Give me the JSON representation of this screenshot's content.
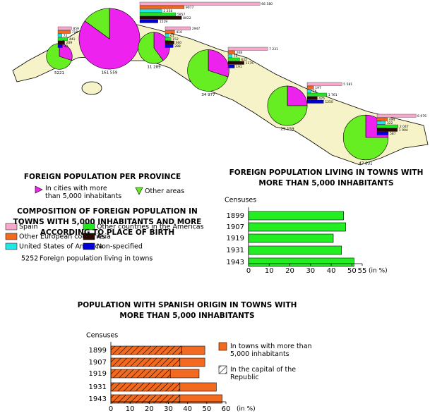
{
  "chart_data": [
    {
      "type": "map",
      "title": "FOREIGN POPULATION PER PROVINCE",
      "pie_legend": [
        {
          "name": "In cities with more than 5,000 inhabitants",
          "color": "#ee22ee"
        },
        {
          "name": "Other areas",
          "color": "#66ee22"
        }
      ],
      "composition_title": "COMPOSITION OF FOREIGN POPULATION IN TOWNS WITH 5,000 INHABITANTS AND MORE ACCORDING TO PLACE OF BIRTH",
      "series": [
        {
          "name": "Spain",
          "color": "#f7a8cc"
        },
        {
          "name": "Other European countries",
          "color": "#f26a1f"
        },
        {
          "name": "United States of America",
          "color": "#22e6e6"
        },
        {
          "name": "Other countries in the Americas",
          "color": "#22e622"
        },
        {
          "name": "Asia",
          "color": "#2a0800"
        },
        {
          "name": "Non-specified",
          "color": "#0000dd"
        }
      ],
      "note_value": 5252,
      "note": "Foreign population living in towns",
      "provinces": [
        {
          "total": 5221,
          "shares": [
            30,
            70
          ],
          "values": [
            859,
            718,
            72,
            441,
            209,
            93
          ]
        },
        {
          "total": 161559,
          "total_label": "161 559",
          "shares": [
            85,
            15
          ],
          "values": [
            66580,
            9077,
            2258,
            5957,
            8022,
            1519
          ],
          "value_labels": [
            "66 580",
            "9077",
            "2 258",
            "5957",
            "8022",
            "1519"
          ]
        },
        {
          "total": 11289,
          "total_label": "11 289",
          "shares": [
            40,
            60
          ],
          "values": [
            2947,
            410,
            61,
            152,
            360,
            288
          ]
        },
        {
          "total": 34977,
          "total_label": "34 977",
          "shares": [
            30,
            70
          ],
          "values": [
            7231,
            208,
            75,
            622,
            1176,
            191
          ],
          "value_labels": [
            "7 231",
            "208",
            "75",
            "622",
            "1176",
            "191"
          ]
        },
        {
          "total": 29159,
          "total_label": "29 159",
          "shares": [
            25,
            75
          ],
          "values": [
            5581,
            197,
            76,
            1761,
            476,
            1250
          ],
          "value_labels": [
            "5 581",
            "197",
            "76",
            "1 761",
            "476",
            "1250"
          ]
        },
        {
          "total": 47831,
          "total_label": "47 831",
          "shares": [
            25,
            75
          ],
          "values": [
            6976,
            494,
            322,
            2047,
            1904,
            587
          ],
          "value_labels": [
            "6 976",
            "494",
            "322",
            "2 047",
            "1 904",
            "587"
          ]
        }
      ]
    },
    {
      "type": "bar",
      "title": "FOREIGN POPULATION LIVING IN TOWNS WITH MORE THAN 5,000 INHABITANTS",
      "y_label": "Censuses",
      "x_label": "(in %)",
      "categories": [
        "1899",
        "1907",
        "1919",
        "1931",
        "1943"
      ],
      "values": [
        46,
        47,
        41,
        45,
        51
      ],
      "color": "#22ee22",
      "xlim": [
        0,
        55
      ],
      "xticks": [
        0,
        10,
        20,
        30,
        40,
        50,
        55
      ]
    },
    {
      "type": "stacked-bar",
      "title": "POPULATION WITH SPANISH ORIGIN IN TOWNS WITH MORE THAN 5,000 INHABITANTS",
      "y_label": "Censuses",
      "x_label": "(in %)",
      "categories": [
        "1899",
        "1907",
        "1919",
        "1931",
        "1943"
      ],
      "series": [
        {
          "name": "In the capital of the Republic",
          "color": "#f26a1f",
          "pattern": "hatch",
          "values": [
            37,
            36,
            31,
            36,
            36
          ]
        },
        {
          "name": "In towns with more than 5,000 inhabitants",
          "color": "#f26a1f",
          "values": [
            12,
            13,
            15,
            19,
            22
          ]
        }
      ],
      "xlim": [
        0,
        60
      ],
      "xticks": [
        0,
        10,
        20,
        30,
        40,
        50,
        60
      ]
    }
  ]
}
